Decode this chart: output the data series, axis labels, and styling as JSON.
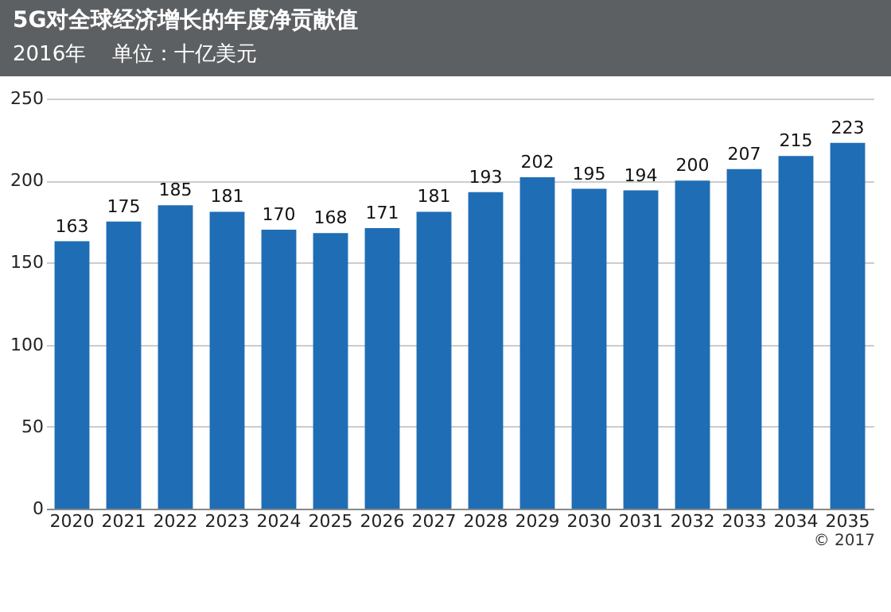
{
  "chart_data": {
    "type": "bar",
    "title": "5G对全球经济增长的年度净贡献值",
    "subtitle": "2016年    单位：十亿美元",
    "categories": [
      "2020",
      "2021",
      "2022",
      "2023",
      "2024",
      "2025",
      "2026",
      "2027",
      "2028",
      "2029",
      "2030",
      "2031",
      "2032",
      "2033",
      "2034",
      "2035"
    ],
    "values": [
      163,
      175,
      185,
      181,
      170,
      168,
      171,
      181,
      193,
      202,
      195,
      194,
      200,
      207,
      215,
      223
    ],
    "color": "#1f6db5",
    "ylim": [
      0,
      250
    ],
    "yticks": [
      0,
      50,
      100,
      150,
      200,
      250
    ],
    "grid": "y",
    "data_labels": true,
    "annotations": [
      "© 2017"
    ]
  }
}
